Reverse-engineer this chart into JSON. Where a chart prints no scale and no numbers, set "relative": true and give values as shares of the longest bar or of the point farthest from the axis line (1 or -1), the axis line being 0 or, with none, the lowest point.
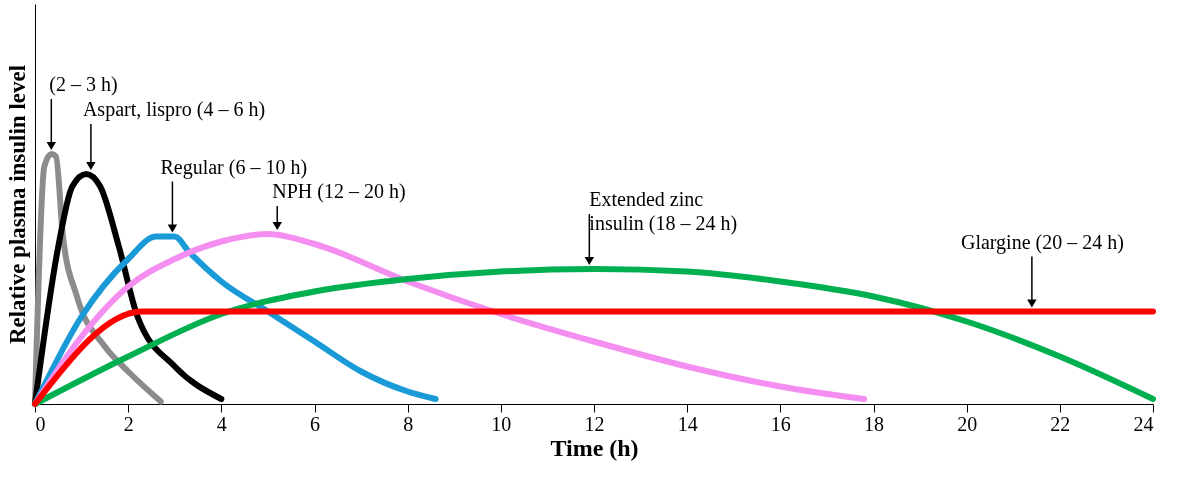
{
  "chart_data": {
    "type": "line",
    "relative": true,
    "xlabel": "Time (h)",
    "ylabel": "Relative plasma insulin level",
    "xlim": [
      0,
      24
    ],
    "xticks": [
      0,
      2,
      4,
      6,
      8,
      10,
      12,
      14,
      16,
      18,
      20,
      22,
      24
    ],
    "series": [
      {
        "color": "#8c8c8c",
        "x": [
          0,
          0.2,
          0.35,
          0.45,
          0.6,
          0.9,
          1.5,
          2,
          2.7
        ],
        "values": [
          0,
          0.95,
          1,
          0.99,
          0.67,
          0.43,
          0.23,
          0.13,
          0.01
        ]
      },
      {
        "color": "#000000",
        "x": [
          0,
          0.5,
          0.8,
          1.1,
          1.4,
          1.8,
          2.2,
          3,
          4
        ],
        "values": [
          0,
          0.63,
          0.87,
          0.92,
          0.87,
          0.63,
          0.35,
          0.15,
          0.02
        ]
      },
      {
        "color": "#1a9ad6",
        "x": [
          0,
          1,
          2,
          2.6,
          3,
          3.3,
          4,
          5,
          6,
          7,
          8,
          8.6
        ],
        "values": [
          0,
          0.35,
          0.58,
          0.67,
          0.67,
          0.61,
          0.49,
          0.37,
          0.25,
          0.13,
          0.05,
          0.02
        ]
      },
      {
        "color": "#f48ef0",
        "x": [
          0,
          1,
          2,
          3,
          4,
          5,
          6,
          8,
          10,
          12,
          14,
          16,
          17.8
        ],
        "values": [
          0,
          0.27,
          0.47,
          0.58,
          0.65,
          0.68,
          0.64,
          0.49,
          0.36,
          0.25,
          0.15,
          0.07,
          0.02
        ]
      },
      {
        "color": "#00b050",
        "x": [
          0,
          2,
          4,
          6,
          8,
          10,
          12,
          14,
          16,
          18,
          20,
          22,
          24
        ],
        "values": [
          0,
          0.19,
          0.36,
          0.45,
          0.5,
          0.53,
          0.54,
          0.53,
          0.49,
          0.43,
          0.33,
          0.19,
          0.02
        ]
      },
      {
        "color": "#ff0000",
        "x": [
          0,
          2.3,
          24
        ],
        "values": [
          0,
          0.37,
          0.37
        ]
      }
    ],
    "annotations": [
      {
        "text": "(2 – 3 h)",
        "x": 0.35,
        "y": 1
      },
      {
        "text": "Aspart, lispro (4 – 6 h)",
        "x": 1.2,
        "y": 0.92
      },
      {
        "text": "Regular (6 – 10 h)",
        "x": 2.95,
        "y": 0.67
      },
      {
        "text": "NPH (12 – 20 h)",
        "x": 5.2,
        "y": 0.68
      },
      {
        "text": "Extended zinc\ninsulin (18 – 24 h)",
        "x": 11.9,
        "y": 0.54
      },
      {
        "text": "Glargine (20 – 24 h)",
        "x": 21.4,
        "y": 0.37
      }
    ]
  }
}
